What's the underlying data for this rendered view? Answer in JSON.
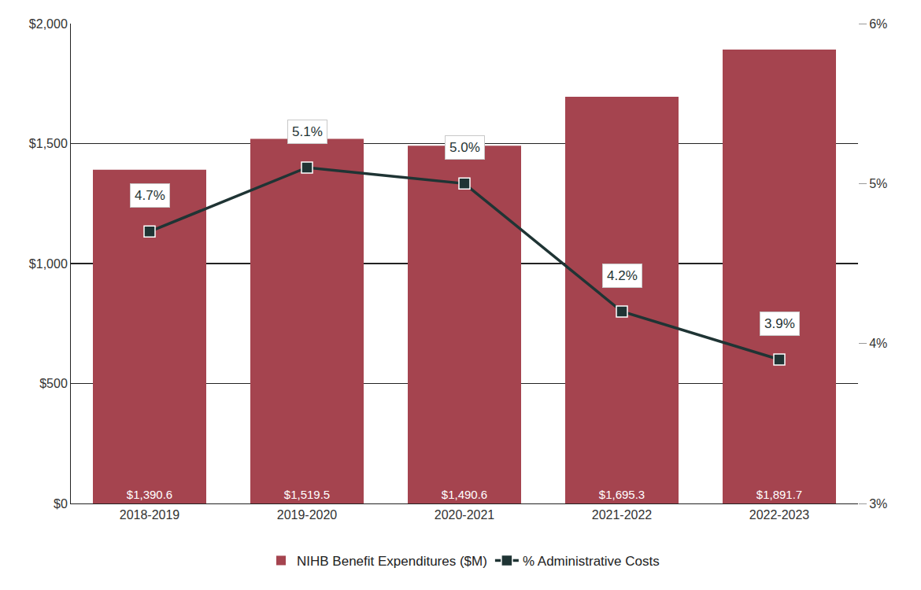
{
  "chart_data": {
    "type": "bar",
    "categories": [
      "2018-2019",
      "2019-2020",
      "2020-2021",
      "2021-2022",
      "2022-2023"
    ],
    "series": [
      {
        "name": "NIHB Benefit Expenditures ($M)",
        "type": "bar",
        "color": "#a5444f",
        "values": [
          1390.6,
          1519.5,
          1490.6,
          1695.3,
          1891.7
        ],
        "value_labels": [
          "$1,390.6",
          "$1,519.5",
          "$1,490.6",
          "$1,695.3",
          "$1,891.7"
        ]
      },
      {
        "name": "% Administrative Costs",
        "type": "line",
        "axis": "y2",
        "color": "#1f3434",
        "marker": "square",
        "values": [
          4.7,
          5.1,
          5.0,
          4.2,
          3.9
        ],
        "value_labels": [
          "4.7%",
          "5.1%",
          "5.0%",
          "4.2%",
          "3.9%"
        ]
      }
    ],
    "ylim": [
      0,
      2000
    ],
    "yticks": [
      {
        "value": 0,
        "label": "$0"
      },
      {
        "value": 500,
        "label": "$500"
      },
      {
        "value": 1000,
        "label": "$1,000"
      },
      {
        "value": 1500,
        "label": "$1,500"
      },
      {
        "value": 2000,
        "label": "$2,000"
      }
    ],
    "y2lim": [
      3,
      6
    ],
    "y2ticks": [
      {
        "value": 3,
        "label": "3%"
      },
      {
        "value": 4,
        "label": "4%"
      },
      {
        "value": 5,
        "label": "5%"
      },
      {
        "value": 6,
        "label": "6%"
      }
    ],
    "grid": true,
    "legend": "bottom",
    "data_labels": true
  }
}
